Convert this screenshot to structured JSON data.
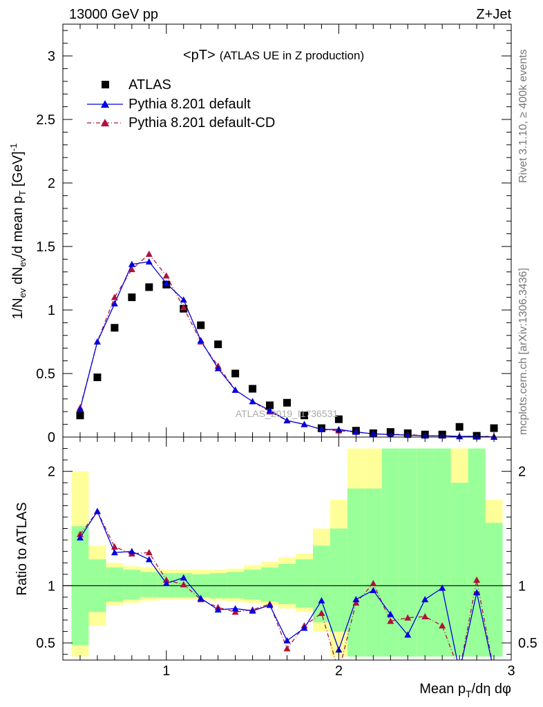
{
  "header": {
    "left": "13000 GeV pp",
    "right": "Z+Jet"
  },
  "plot_title": {
    "main": "<pT>",
    "sub": "(ATLAS UE in Z production)"
  },
  "side_labels": {
    "top": "Rivet 3.1.10, ≥ 400k events",
    "bottom": "mcplots.cern.ch [arXiv:1306.3436]"
  },
  "watermark": "ATLAS_2019_I1736531",
  "colors": {
    "atlas": "#000000",
    "default": "#0000dd",
    "cd": "#b0103a",
    "band_inner": "#99ff99",
    "band_outer": "#ffff99"
  },
  "chart_data": [
    {
      "type": "scatter",
      "title": "<pT> (ATLAS UE in Z production)",
      "xlabel": "Mean p_T/dη dφ",
      "ylabel": "1/N_ev dN_ev/d mean p_T [GeV]^-1",
      "xlim": [
        0.4,
        3.0
      ],
      "ylim": [
        0.0,
        3.25
      ],
      "yticks": [
        "0",
        "0.5",
        "1",
        "1.5",
        "2",
        "2.5",
        "3"
      ],
      "legend_position": "top-left",
      "legend": [
        "ATLAS",
        "Pythia 8.201 default",
        "Pythia 8.201 default-CD"
      ],
      "series": [
        {
          "name": "ATLAS",
          "x": [
            0.5,
            0.6,
            0.7,
            0.8,
            0.9,
            1.0,
            1.1,
            1.2,
            1.3,
            1.4,
            1.5,
            1.6,
            1.7,
            1.8,
            1.9,
            2.0,
            2.1,
            2.2,
            2.3,
            2.4,
            2.5,
            2.6,
            2.7,
            2.8,
            2.9
          ],
          "y": [
            0.17,
            0.47,
            0.86,
            1.1,
            1.18,
            1.2,
            1.01,
            0.88,
            0.73,
            0.5,
            0.38,
            0.25,
            0.27,
            0.17,
            0.07,
            0.14,
            0.05,
            0.03,
            0.04,
            0.03,
            0.02,
            0.02,
            0.08,
            0.01,
            0.07
          ]
        },
        {
          "name": "Pythia 8.201 default",
          "x": [
            0.5,
            0.6,
            0.7,
            0.8,
            0.9,
            1.0,
            1.1,
            1.2,
            1.3,
            1.4,
            1.5,
            1.6,
            1.7,
            1.8,
            1.9,
            2.0,
            2.1,
            2.2,
            2.3,
            2.4,
            2.5,
            2.6,
            2.7,
            2.8,
            2.9
          ],
          "y": [
            0.22,
            0.75,
            1.05,
            1.36,
            1.38,
            1.21,
            1.08,
            0.76,
            0.54,
            0.37,
            0.28,
            0.21,
            0.13,
            0.1,
            0.06,
            0.06,
            0.04,
            0.025,
            0.02,
            0.015,
            0.01,
            0.01,
            0.005,
            0.005,
            0.0
          ]
        },
        {
          "name": "Pythia 8.201 default-CD",
          "x": [
            0.5,
            0.6,
            0.7,
            0.8,
            0.9,
            1.0,
            1.1,
            1.2,
            1.3,
            1.4,
            1.5,
            1.6,
            1.7,
            1.8,
            1.9,
            2.0,
            2.1,
            2.2,
            2.3,
            2.4,
            2.5,
            2.6,
            2.7,
            2.8,
            2.9
          ],
          "y": [
            0.23,
            0.75,
            1.1,
            1.32,
            1.44,
            1.27,
            1.02,
            0.75,
            0.56,
            0.37,
            0.28,
            0.2,
            0.13,
            0.1,
            0.06,
            0.05,
            0.04,
            0.025,
            0.02,
            0.02,
            0.01,
            0.01,
            0.005,
            0.005,
            0.005
          ]
        }
      ]
    },
    {
      "type": "line",
      "xlabel": "Mean p_T/dη dφ",
      "ylabel": "Ratio to ATLAS",
      "xlim": [
        0.4,
        3.0
      ],
      "ylim": [
        0.35,
        2.3
      ],
      "yticks": [
        "0.5",
        "1",
        "2"
      ],
      "xticks": [
        "1",
        "2",
        "3"
      ],
      "reference_line": 1,
      "bands": {
        "x": [
          0.5,
          0.6,
          0.7,
          0.8,
          0.9,
          1.0,
          1.1,
          1.2,
          1.3,
          1.4,
          1.5,
          1.6,
          1.7,
          1.8,
          1.9,
          2.0,
          2.1,
          2.2,
          2.3,
          2.4,
          2.5,
          2.6,
          2.7,
          2.8,
          2.9
        ],
        "inner_low": [
          0.48,
          0.77,
          0.86,
          0.88,
          0.9,
          0.9,
          0.9,
          0.9,
          0.89,
          0.89,
          0.88,
          0.86,
          0.84,
          0.81,
          0.68,
          0.6,
          0.38,
          0.38,
          0.38,
          0.38,
          0.38,
          0.38,
          0.38,
          0.38,
          0.38
        ],
        "inner_high": [
          1.52,
          1.23,
          1.16,
          1.14,
          1.12,
          1.11,
          1.11,
          1.1,
          1.11,
          1.12,
          1.14,
          1.16,
          1.19,
          1.23,
          1.35,
          1.5,
          1.85,
          1.85,
          2.2,
          2.2,
          2.2,
          2.2,
          1.9,
          2.2,
          1.55
        ],
        "outer_low": [
          0.38,
          0.65,
          0.83,
          0.85,
          0.87,
          0.88,
          0.88,
          0.88,
          0.87,
          0.86,
          0.85,
          0.83,
          0.8,
          0.77,
          0.6,
          0.38,
          0.38,
          0.38,
          0.38,
          0.38,
          0.38,
          0.38,
          0.38,
          0.38,
          0.38
        ],
        "outer_high": [
          2.0,
          1.35,
          1.2,
          1.17,
          1.16,
          1.14,
          1.14,
          1.14,
          1.14,
          1.15,
          1.18,
          1.21,
          1.25,
          1.28,
          1.5,
          1.75,
          2.2,
          2.2,
          2.2,
          2.2,
          2.2,
          2.2,
          2.2,
          2.2,
          1.75
        ]
      },
      "series": [
        {
          "name": "Pythia 8.201 default",
          "x": [
            0.5,
            0.6,
            0.7,
            0.8,
            0.9,
            1.0,
            1.1,
            1.2,
            1.3,
            1.4,
            1.5,
            1.6,
            1.7,
            1.8,
            1.9,
            2.0,
            2.1,
            2.2,
            2.3,
            2.4,
            2.5,
            2.6,
            2.7,
            2.8,
            2.9
          ],
          "y": [
            1.42,
            1.65,
            1.29,
            1.3,
            1.23,
            1.02,
            1.07,
            0.89,
            0.79,
            0.8,
            0.78,
            0.83,
            0.52,
            0.63,
            0.87,
            0.44,
            0.88,
            0.96,
            0.75,
            0.57,
            0.88,
            0.98,
            0.2,
            0.94,
            0.2
          ]
        },
        {
          "name": "Pythia 8.201 default-CD",
          "x": [
            0.5,
            0.6,
            0.7,
            0.8,
            0.9,
            1.0,
            1.1,
            1.2,
            1.3,
            1.4,
            1.5,
            1.6,
            1.7,
            1.8,
            1.9,
            2.0,
            2.1,
            2.2,
            2.3,
            2.4,
            2.5,
            2.6,
            2.7,
            2.8,
            2.9
          ],
          "y": [
            1.45,
            1.65,
            1.34,
            1.28,
            1.29,
            1.05,
            1.01,
            0.88,
            0.81,
            0.77,
            0.79,
            0.84,
            0.45,
            0.65,
            0.76,
            0.2,
            0.85,
            1.02,
            0.69,
            0.72,
            0.73,
            0.65,
            0.2,
            1.05,
            0.2
          ]
        }
      ]
    }
  ]
}
